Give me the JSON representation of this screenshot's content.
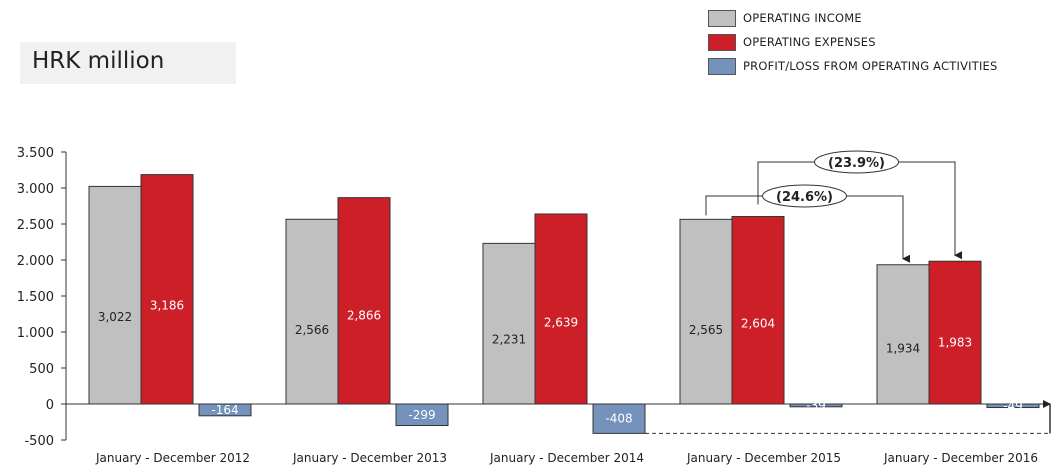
{
  "unit_label": "HRK million",
  "legend": [
    {
      "label": "OPERATING INCOME",
      "color": "#c0c0c0"
    },
    {
      "label": "OPERATING EXPENSES",
      "color": "#cc1f27"
    },
    {
      "label": "PROFIT/LOSS FROM OPERATING ACTIVITIES",
      "color": "#7592bd"
    }
  ],
  "chart_data": {
    "type": "bar",
    "title": "",
    "xlabel": "",
    "ylabel": "HRK million",
    "ylim": [
      -500,
      3500
    ],
    "yticks": [
      -500,
      0,
      500,
      1000,
      1500,
      2000,
      2500,
      3000,
      3500
    ],
    "ytick_labels": [
      "-500",
      "0",
      "500",
      "1.000",
      "1.500",
      "2.000",
      "2.500",
      "3.000",
      "3.500"
    ],
    "categories": [
      "January - December 2012",
      "January - December 2013",
      "January - December 2014",
      "January - December 2015",
      "January - December 2016"
    ],
    "series": [
      {
        "name": "OPERATING INCOME",
        "color": "#c0c0c0",
        "values": [
          3022,
          2566,
          2231,
          2565,
          1934
        ],
        "labels": [
          "3,022",
          "2,566",
          "2,231",
          "2,565",
          "1,934"
        ],
        "label_color": "#222222"
      },
      {
        "name": "OPERATING EXPENSES",
        "color": "#cc1f27",
        "values": [
          3186,
          2866,
          2639,
          2604,
          1983
        ],
        "labels": [
          "3,186",
          "2,866",
          "2,639",
          "2,604",
          "1,983"
        ],
        "label_color": "#ffffff"
      },
      {
        "name": "PROFIT/LOSS FROM OPERATING ACTIVITIES",
        "color": "#7592bd",
        "values": [
          -164,
          -299,
          -408,
          -39,
          -49
        ],
        "labels": [
          "-164",
          "-299",
          "-408",
          "-39",
          "-49"
        ],
        "label_color": "#ffffff"
      }
    ],
    "annotations": [
      {
        "text": "(23.9%)",
        "from_series": 1,
        "from_category": 3,
        "to_category": 4
      },
      {
        "text": "(24.6%)",
        "from_series": 0,
        "from_category": 3,
        "to_category": 4
      }
    ],
    "grid": false,
    "legend_position": "top-right"
  }
}
